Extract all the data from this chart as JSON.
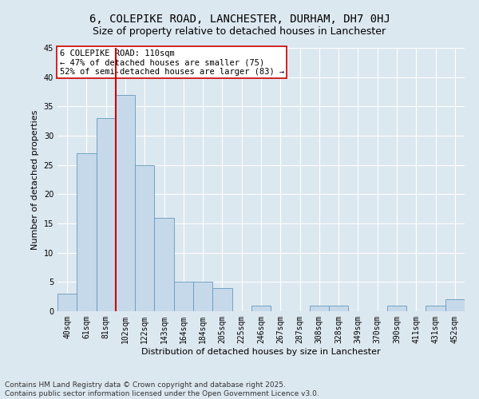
{
  "title1": "6, COLEPIKE ROAD, LANCHESTER, DURHAM, DH7 0HJ",
  "title2": "Size of property relative to detached houses in Lanchester",
  "xlabel": "Distribution of detached houses by size in Lanchester",
  "ylabel": "Number of detached properties",
  "categories": [
    "40sqm",
    "61sqm",
    "81sqm",
    "102sqm",
    "122sqm",
    "143sqm",
    "164sqm",
    "184sqm",
    "205sqm",
    "225sqm",
    "246sqm",
    "267sqm",
    "287sqm",
    "308sqm",
    "328sqm",
    "349sqm",
    "370sqm",
    "390sqm",
    "411sqm",
    "431sqm",
    "452sqm"
  ],
  "values": [
    3,
    27,
    33,
    37,
    25,
    16,
    5,
    5,
    4,
    0,
    1,
    0,
    0,
    1,
    1,
    0,
    0,
    1,
    0,
    1,
    2
  ],
  "bar_color": "#c6d9ea",
  "bar_edge_color": "#6699bb",
  "vline_x_index": 3,
  "vline_color": "#cc0000",
  "annotation_title": "6 COLEPIKE ROAD: 110sqm",
  "annotation_line1": "← 47% of detached houses are smaller (75)",
  "annotation_line2": "52% of semi-detached houses are larger (83) →",
  "annotation_box_color": "#ffffff",
  "annotation_box_edge": "#cc0000",
  "background_color": "#dce8f0",
  "ylim": [
    0,
    45
  ],
  "yticks": [
    0,
    5,
    10,
    15,
    20,
    25,
    30,
    35,
    40,
    45
  ],
  "footer1": "Contains HM Land Registry data © Crown copyright and database right 2025.",
  "footer2": "Contains public sector information licensed under the Open Government Licence v3.0.",
  "title_fontsize": 10,
  "subtitle_fontsize": 9,
  "axis_label_fontsize": 8,
  "tick_fontsize": 7,
  "annotation_fontsize": 7.5,
  "footer_fontsize": 6.5
}
